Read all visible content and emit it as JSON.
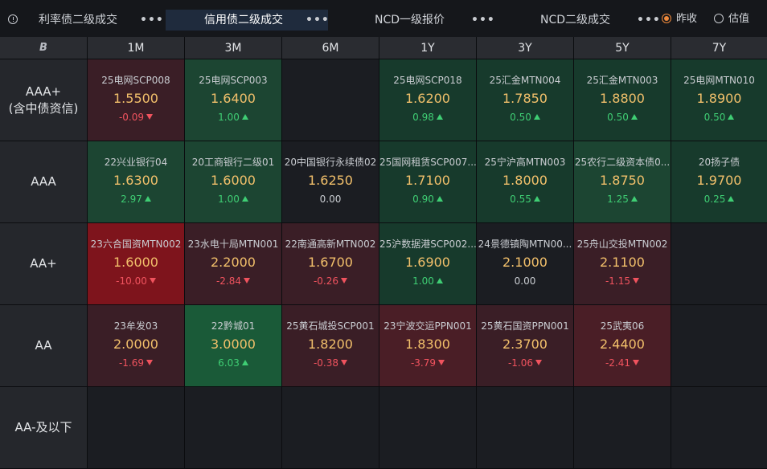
{
  "tabs": [
    {
      "label": "利率债二级成交",
      "active": false
    },
    {
      "label": "信用债二级成交",
      "active": true
    },
    {
      "label": "NCD一级报价",
      "active": false
    },
    {
      "label": "NCD二级成交",
      "active": false
    }
  ],
  "more_label": "•••",
  "radios": [
    {
      "label": "昨收",
      "checked": true
    },
    {
      "label": "估值",
      "checked": false
    }
  ],
  "corner_label": "B",
  "tenors": [
    "1M",
    "3M",
    "6M",
    "1Y",
    "3Y",
    "5Y",
    "7Y"
  ],
  "rows": [
    {
      "rating": "AAA+",
      "rating_sub": "(含中债资信)",
      "cells": [
        {
          "name": "25电网SCP008",
          "rate": "1.5500",
          "change": "-0.09",
          "dir": "down",
          "color": "r1"
        },
        {
          "name": "25电网SCP003",
          "rate": "1.6400",
          "change": "1.00",
          "dir": "up",
          "color": "g2"
        },
        null,
        {
          "name": "25电网SCP018",
          "rate": "1.6200",
          "change": "0.98",
          "dir": "up",
          "color": "g1"
        },
        {
          "name": "25汇金MTN004",
          "rate": "1.7850",
          "change": "0.50",
          "dir": "up",
          "color": "g1"
        },
        {
          "name": "25汇金MTN003",
          "rate": "1.8800",
          "change": "0.50",
          "dir": "up",
          "color": "g1"
        },
        {
          "name": "25电网MTN010",
          "rate": "1.8900",
          "change": "0.50",
          "dir": "up",
          "color": "g1"
        }
      ]
    },
    {
      "rating": "AAA",
      "rating_sub": "",
      "cells": [
        {
          "name": "22兴业银行04",
          "rate": "1.6300",
          "change": "2.97",
          "dir": "up",
          "color": "g2"
        },
        {
          "name": "20工商银行二级01",
          "rate": "1.6000",
          "change": "1.00",
          "dir": "up",
          "color": "g2"
        },
        {
          "name": "20中国银行永续债02",
          "rate": "1.6250",
          "change": "0.00",
          "dir": "flat",
          "color": "n"
        },
        {
          "name": "25国网租赁SCP007...",
          "rate": "1.7100",
          "change": "0.90",
          "dir": "up",
          "color": "g1"
        },
        {
          "name": "25宁沪高MTN003",
          "rate": "1.8000",
          "change": "0.55",
          "dir": "up",
          "color": "g1"
        },
        {
          "name": "25农行二级资本债0...",
          "rate": "1.8750",
          "change": "1.25",
          "dir": "up",
          "color": "g2"
        },
        {
          "name": "20扬子债",
          "rate": "1.9700",
          "change": "0.25",
          "dir": "up",
          "color": "g1"
        }
      ]
    },
    {
      "rating": "AA+",
      "rating_sub": "",
      "cells": [
        {
          "name": "23六合国资MTN002",
          "rate": "1.6000",
          "change": "-10.00",
          "dir": "down",
          "color": "r3"
        },
        {
          "name": "23水电十局MTN001",
          "rate": "2.2000",
          "change": "-2.84",
          "dir": "down",
          "color": "r1"
        },
        {
          "name": "22南通高新MTN002",
          "rate": "1.6700",
          "change": "-0.26",
          "dir": "down",
          "color": "r1"
        },
        {
          "name": "25沪数据港SCP002...",
          "rate": "1.6900",
          "change": "1.00",
          "dir": "up",
          "color": "g1"
        },
        {
          "name": "24景德镇陶MTN00...",
          "rate": "2.1000",
          "change": "0.00",
          "dir": "flat",
          "color": "n"
        },
        {
          "name": "25舟山交投MTN002",
          "rate": "2.1100",
          "change": "-1.15",
          "dir": "down",
          "color": "r1"
        },
        null
      ]
    },
    {
      "rating": "AA",
      "rating_sub": "",
      "cells": [
        {
          "name": "23牟发03",
          "rate": "2.0000",
          "change": "-1.69",
          "dir": "down",
          "color": "r1"
        },
        {
          "name": "22黔城01",
          "rate": "3.0000",
          "change": "6.03",
          "dir": "up",
          "color": "g3"
        },
        {
          "name": "25黄石城投SCP001",
          "rate": "1.8200",
          "change": "-0.38",
          "dir": "down",
          "color": "r1"
        },
        {
          "name": "23宁波交运PPN001",
          "rate": "1.8300",
          "change": "-3.79",
          "dir": "down",
          "color": "r2"
        },
        {
          "name": "25黄石国资PPN001",
          "rate": "2.3700",
          "change": "-1.06",
          "dir": "down",
          "color": "r1"
        },
        {
          "name": "25武夷06",
          "rate": "2.4400",
          "change": "-2.41",
          "dir": "down",
          "color": "r2"
        },
        null
      ]
    },
    {
      "rating": "AA-及以下",
      "rating_sub": "",
      "cells": [
        null,
        null,
        null,
        null,
        null,
        null,
        null
      ]
    }
  ]
}
